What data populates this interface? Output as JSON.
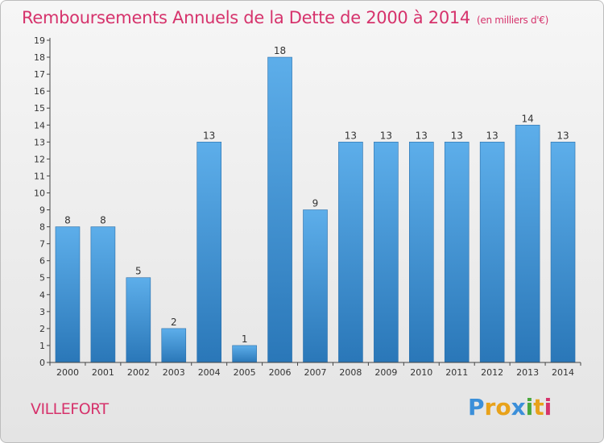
{
  "header": {
    "title": "Remboursements Annuels de la Dette de 2000 à 2014",
    "unit": "(en milliers d'€)"
  },
  "footer": {
    "commune": "VILLEFORT",
    "logo": {
      "letters": [
        "P",
        "r",
        "o",
        "x",
        "i",
        "t",
        "i"
      ],
      "colors": [
        "#3b8fd9",
        "#e8a21a",
        "#e8a21a",
        "#3b8fd9",
        "#49a83c",
        "#e8a21a",
        "#d6336c"
      ]
    }
  },
  "colors": {
    "bar_top": "#5daeea",
    "bar_bottom": "#2a77b8",
    "accent": "#d6336c"
  },
  "chart_data": {
    "type": "bar",
    "categories": [
      "2000",
      "2001",
      "2002",
      "2003",
      "2004",
      "2005",
      "2006",
      "2007",
      "2008",
      "2009",
      "2010",
      "2011",
      "2012",
      "2013",
      "2014"
    ],
    "values": [
      8,
      8,
      5,
      2,
      13,
      1,
      18,
      9,
      13,
      13,
      13,
      13,
      13,
      14,
      13
    ],
    "yticks": [
      0,
      1,
      2,
      3,
      4,
      5,
      6,
      7,
      8,
      9,
      10,
      11,
      12,
      13,
      14,
      15,
      16,
      17,
      18,
      19
    ],
    "ylim": [
      0,
      19
    ],
    "grid": false,
    "legend": "none"
  }
}
